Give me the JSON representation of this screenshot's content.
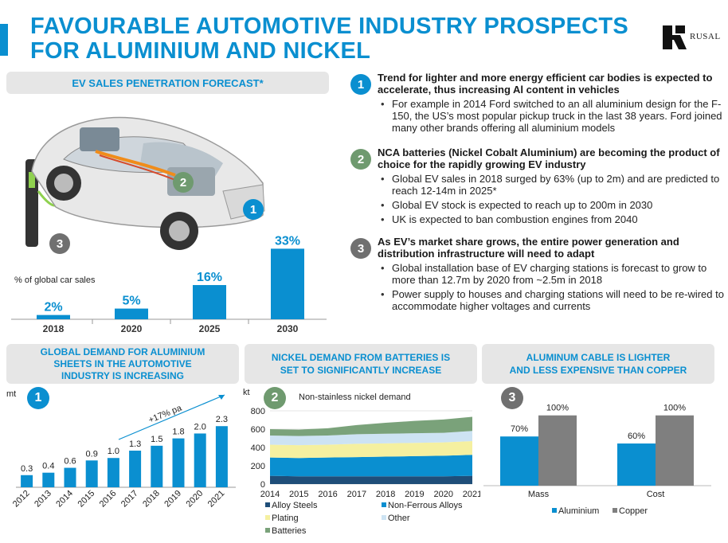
{
  "header": {
    "title_line1": "FAVOURABLE AUTOMOTIVE INDUSTRY PROSPECTS",
    "title_line2": "FOR ALUMINIUM AND NICKEL",
    "logo_text": "RUSAL"
  },
  "ev_panel": {
    "heading": "EV SALES PENETRATION FORECAST*",
    "markers": [
      "1",
      "2",
      "3"
    ]
  },
  "points": [
    {
      "number": "1",
      "heading": "Trend for lighter and more energy efficient car bodies is expected to accelerate, thus increasing Al content in vehicles",
      "bullets": [
        "For example in 2014 Ford switched to an all aluminium design for the F-150, the US’s most popular pickup truck in the last 38 years. Ford joined many other brands offering all aluminium models"
      ]
    },
    {
      "number": "2",
      "heading": "NCA batteries (Nickel Cobalt Aluminium) are becoming the product of choice for the rapidly growing EV industry",
      "bullets": [
        "Global EV sales in 2018 surged by 63% (up to 2m) and are predicted to reach 12-14m  in 2025*",
        "Global EV stock is expected to reach up to 200m in 2030",
        "UK is expected to ban combustion engines from 2040"
      ]
    },
    {
      "number": "3",
      "heading": "As EV’s market share grows, the entire power generation and distribution infrastructure will need to adapt",
      "bullets": [
        "Global installation base of EV charging stations is forecast to grow to more than 12.7m by 2020 from ~2.5m in 2018",
        "Power supply to houses and charging stations will need to be re-wired to accommodate higher voltages and currents"
      ]
    }
  ],
  "aluminium_panel": {
    "heading_line1": "GLOBAL DEMAND FOR ALUMINIUM",
    "heading_line2": "SHEETS IN THE AUTOMOTIVE",
    "heading_line3": "INDUSTRY IS INCREASING",
    "number": "1"
  },
  "nickel_panel": {
    "heading_line1": "NICKEL DEMAND FROM BATTERIES IS",
    "heading_line2": "SET TO SIGNIFICANTLY INCREASE",
    "number": "2"
  },
  "cable_panel": {
    "heading_line1": "ALUMINUM CABLE IS LIGHTER",
    "heading_line2": "AND LESS EXPENSIVE THAN COPPER",
    "number": "3"
  },
  "colors": {
    "brand_blue": "#0a8fd0",
    "green": "#6f9a6f",
    "gray": "#707070",
    "alloy_steels": "#1f4e79",
    "non_ferrous": "#0a8fd0",
    "plating": "#f5f0a0",
    "other": "#cde3f3",
    "batteries": "#7aa27a",
    "copper": "#7f7f7f"
  },
  "chart_data": [
    {
      "type": "bar",
      "ylabel": "% of global car sales",
      "categories": [
        "2018",
        "2020",
        "2025",
        "2030"
      ],
      "values": [
        2,
        5,
        16,
        33
      ],
      "data_labels": [
        "2%",
        "5%",
        "16%",
        "33%"
      ],
      "ylim": [
        0,
        35
      ]
    },
    {
      "type": "bar",
      "ylabel": "mt",
      "categories": [
        "2012",
        "2013",
        "2014",
        "2015",
        "2016",
        "2017",
        "2018",
        "2019",
        "2020",
        "2021"
      ],
      "values": [
        0.3,
        0.4,
        0.6,
        0.9,
        1.0,
        1.3,
        1.5,
        1.8,
        2.0,
        2.3
      ],
      "data_labels": [
        "0.3",
        "0.4",
        "0.6",
        "0.9",
        "1.0",
        "1.3",
        "1.5",
        "1.8",
        "2.0",
        "2.3"
      ],
      "annotation": "+17% pa",
      "ylim": [
        0,
        2.6
      ]
    },
    {
      "type": "area",
      "title": "Non-stainless nickel demand",
      "ylabel": "kt",
      "x": [
        "2014",
        "2015",
        "2016",
        "2017",
        "2018",
        "2019",
        "2020",
        "2021"
      ],
      "yticks": [
        "0",
        "200",
        "400",
        "600",
        "800"
      ],
      "ylim": [
        0,
        800
      ],
      "series": [
        {
          "name": "Alloy Steels",
          "values": [
            90,
            85,
            85,
            85,
            85,
            85,
            85,
            90
          ]
        },
        {
          "name": "Non-Ferrous Alloys",
          "values": [
            200,
            200,
            205,
            210,
            215,
            220,
            225,
            230
          ]
        },
        {
          "name": "Plating",
          "values": [
            140,
            140,
            140,
            145,
            145,
            145,
            145,
            150
          ]
        },
        {
          "name": "Other",
          "values": [
            100,
            100,
            100,
            105,
            105,
            105,
            105,
            110
          ]
        },
        {
          "name": "Batteries",
          "values": [
            70,
            70,
            80,
            100,
            120,
            135,
            145,
            155
          ]
        }
      ]
    },
    {
      "type": "bar",
      "categories": [
        "Mass",
        "Cost"
      ],
      "series": [
        {
          "name": "Aluminium",
          "values": [
            70,
            60
          ],
          "labels": [
            "70%",
            "60%"
          ]
        },
        {
          "name": "Copper",
          "values": [
            100,
            100
          ],
          "labels": [
            "100%",
            "100%"
          ]
        }
      ],
      "ylim": [
        0,
        115
      ]
    }
  ]
}
